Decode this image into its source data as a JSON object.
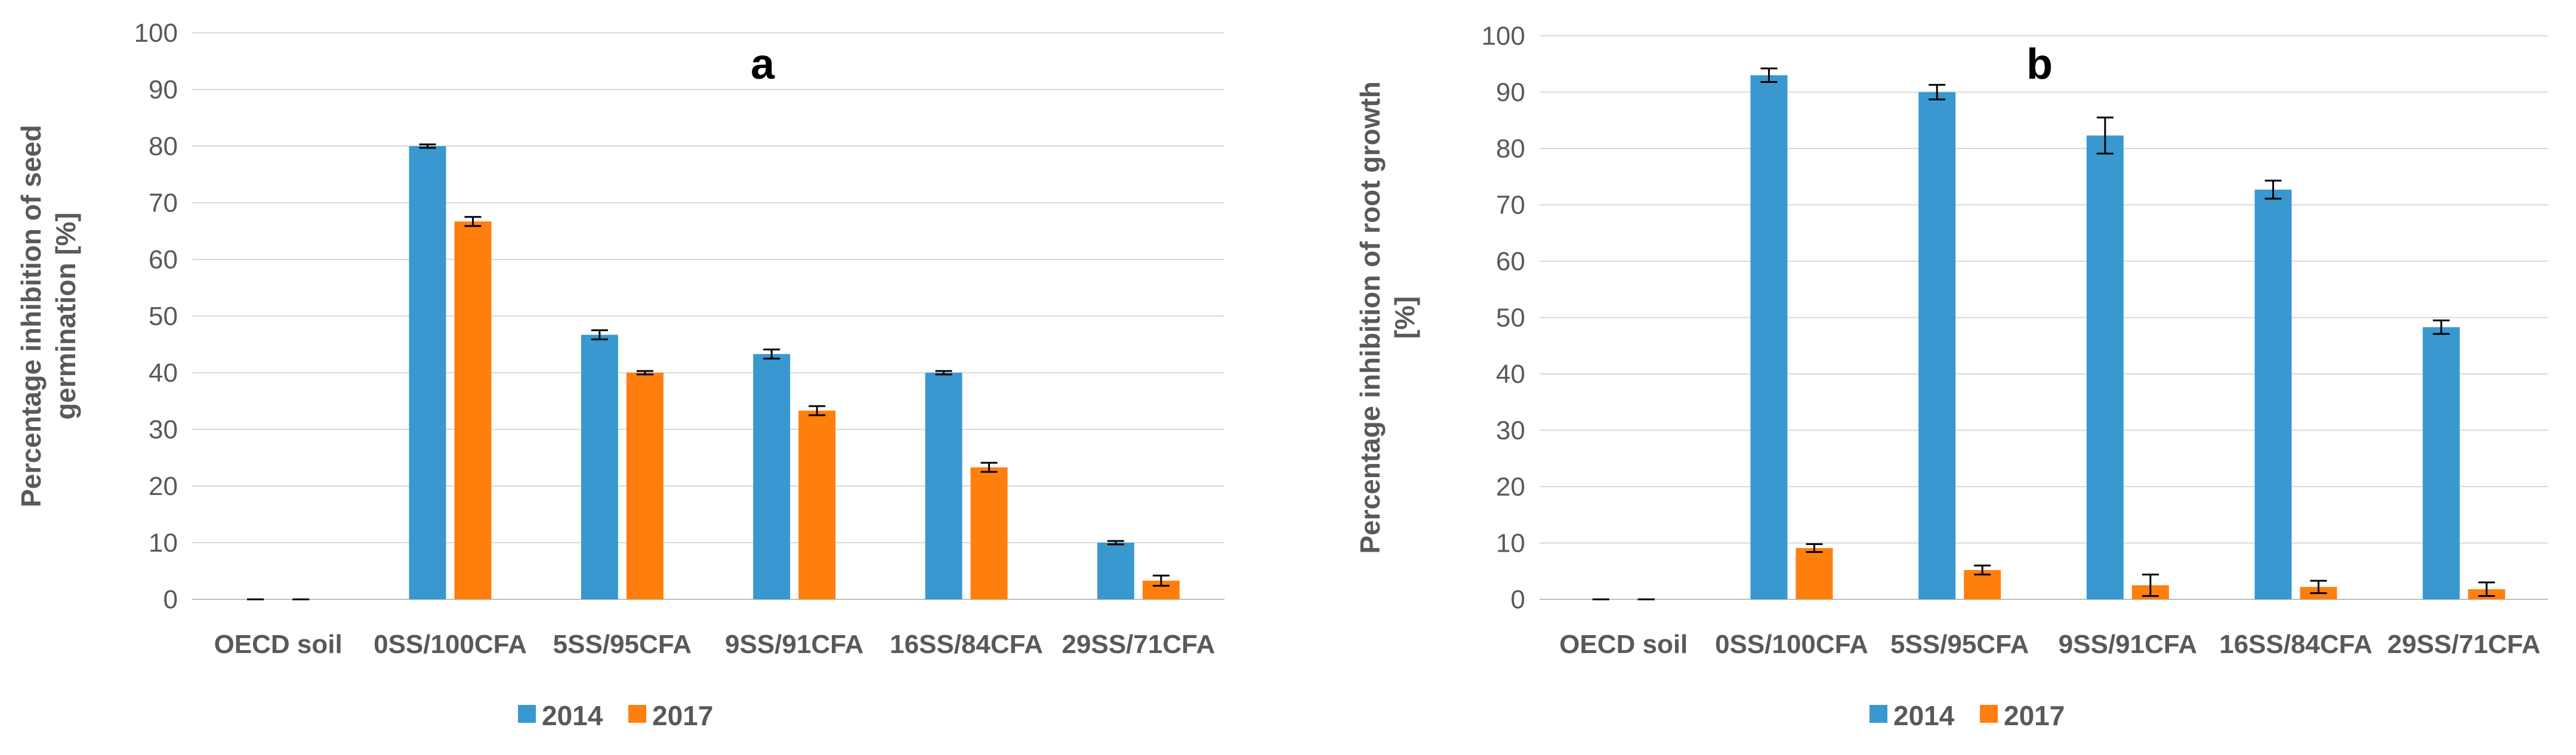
{
  "chart_data": [
    {
      "type": "bar",
      "panel_label": "a",
      "ylabel": "Percentage inhibition of seed germination [%]",
      "ylabel_lines": [
        "Percentage inhibition of seed",
        "germination [%]"
      ],
      "ylim": [
        0,
        100
      ],
      "yticks": [
        0,
        10,
        20,
        30,
        40,
        50,
        60,
        70,
        80,
        90,
        100
      ],
      "grid": true,
      "legend_position": "bottom-left",
      "categories": [
        "OECD soil",
        "0SS/100CFA",
        "5SS/95CFA",
        "9SS/91CFA",
        "16SS/84CFA",
        "29SS/71CFA"
      ],
      "series": [
        {
          "name": "2014",
          "color": "#3a98d0",
          "values": [
            0,
            80,
            46.7,
            43.3,
            40,
            10
          ],
          "errors": [
            0,
            0.3,
            0.8,
            0.8,
            0.3,
            0.3
          ]
        },
        {
          "name": "2017",
          "color": "#ff7f0e",
          "values": [
            0,
            66.7,
            40,
            33.3,
            23.3,
            3.3
          ],
          "errors": [
            0,
            0.8,
            0.3,
            0.8,
            0.8,
            0.9
          ]
        }
      ]
    },
    {
      "type": "bar",
      "panel_label": "b",
      "ylabel": "Percentage inhibition of root growth [%]",
      "ylabel_lines": [
        "Percentage inhibition of root growth",
        "[%]"
      ],
      "ylim": [
        0,
        100
      ],
      "yticks": [
        0,
        10,
        20,
        30,
        40,
        50,
        60,
        70,
        80,
        90,
        100
      ],
      "grid": true,
      "legend_position": "bottom-left",
      "categories": [
        "OECD soil",
        "0SS/100CFA",
        "5SS/95CFA",
        "9SS/91CFA",
        "16SS/84CFA",
        "29SS/71CFA"
      ],
      "series": [
        {
          "name": "2014",
          "color": "#3a98d0",
          "values": [
            0,
            93,
            90,
            82.3,
            72.7,
            48.3
          ],
          "errors": [
            0,
            1.2,
            1.3,
            3.2,
            1.6,
            1.2
          ]
        },
        {
          "name": "2017",
          "color": "#ff7f0e",
          "values": [
            0,
            9.1,
            5.2,
            2.5,
            2.2,
            1.8
          ],
          "errors": [
            0,
            0.7,
            0.8,
            1.9,
            1.1,
            1.2
          ]
        }
      ]
    }
  ]
}
